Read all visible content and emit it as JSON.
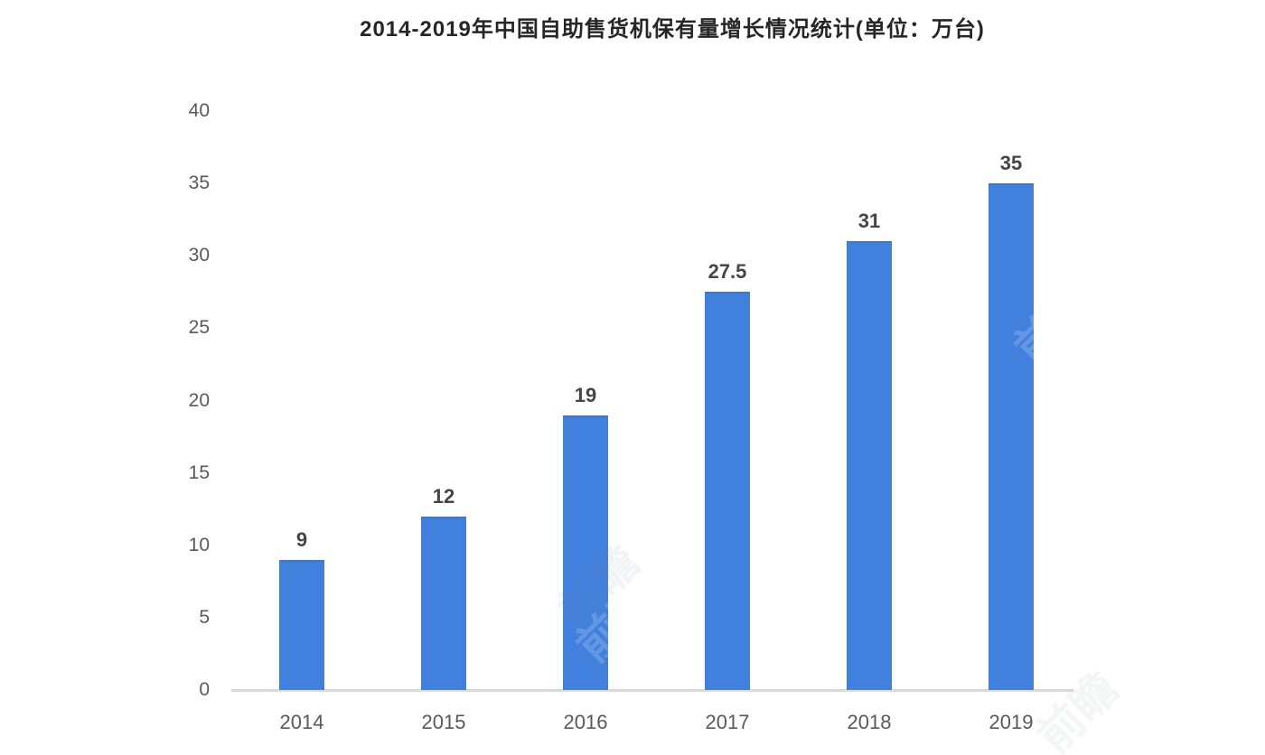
{
  "chart_data": {
    "type": "bar",
    "title": "2014-2019年中国自助售货机保有量增长情况统计(单位：万台)",
    "categories": [
      "2014",
      "2015",
      "2016",
      "2017",
      "2018",
      "2019"
    ],
    "values": [
      9,
      12,
      19,
      27.5,
      31,
      35
    ],
    "unit_label": "万台",
    "xlabel": "",
    "ylabel": "",
    "ylim": [
      0,
      40
    ],
    "yticks": [
      0,
      5,
      10,
      15,
      20,
      25,
      30,
      35,
      40
    ],
    "grid": false,
    "legend_position": "none",
    "bar_color": "#4181dd",
    "axis_line_color": "#dadada",
    "tick_label_color": "#595959",
    "value_label_color": "#454545",
    "title_color": "#262626"
  },
  "watermark": {
    "text": "前瞻"
  }
}
